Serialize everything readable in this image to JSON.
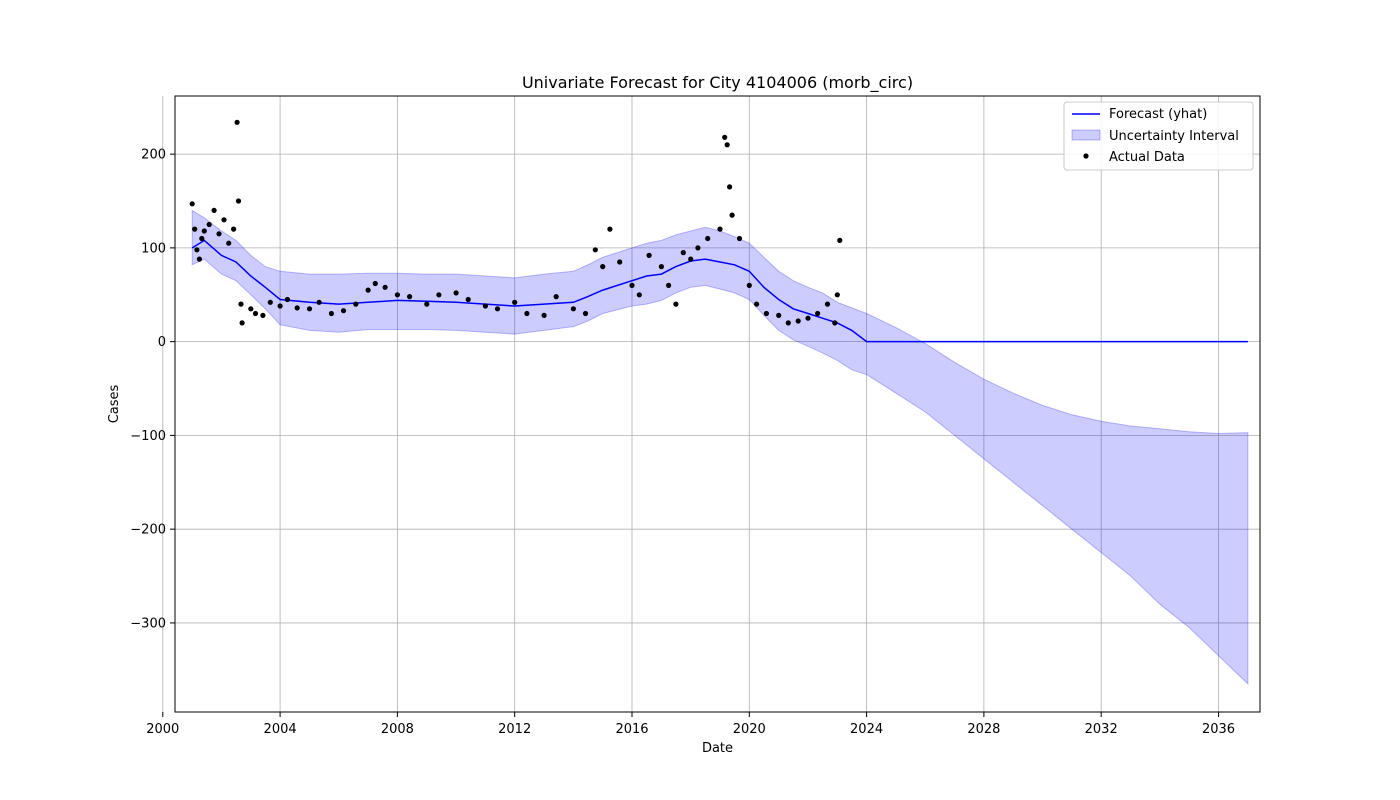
{
  "chart_data": {
    "type": "line",
    "title": "Univariate Forecast for City 4104006 (morb_circ)",
    "xlabel": "Date",
    "ylabel": "Cases",
    "xlim": [
      "2000-06-01",
      "2037-06-01"
    ],
    "ylim": [
      -395,
      262
    ],
    "x_ticks": [
      "2000",
      "2004",
      "2008",
      "2012",
      "2016",
      "2020",
      "2024",
      "2028",
      "2032",
      "2036"
    ],
    "y_ticks": [
      200,
      100,
      0,
      -100,
      -200,
      -300
    ],
    "y_tick_labels": [
      "200",
      "100",
      "0",
      "−100",
      "−200",
      "−300"
    ],
    "grid": true,
    "legend_position": "top-right",
    "colors": {
      "forecast": "#0000ff",
      "interval": "#0000ff",
      "actual": "#000000"
    },
    "series": [
      {
        "name": "Forecast (yhat)",
        "kind": "line",
        "x": [
          "2001-01-01",
          "2001-06-01",
          "2002-01-01",
          "2002-07-01",
          "2003-01-01",
          "2003-07-01",
          "2004-01-01",
          "2005-01-01",
          "2006-01-01",
          "2007-01-01",
          "2008-01-01",
          "2009-01-01",
          "2010-01-01",
          "2011-01-01",
          "2012-01-01",
          "2013-01-01",
          "2014-01-01",
          "2014-07-01",
          "2015-01-01",
          "2016-01-01",
          "2016-07-01",
          "2017-01-01",
          "2017-07-01",
          "2018-01-01",
          "2018-07-01",
          "2019-01-01",
          "2019-07-01",
          "2020-01-01",
          "2020-07-01",
          "2021-01-01",
          "2021-07-01",
          "2022-01-01",
          "2022-07-01",
          "2023-01-01",
          "2023-07-01",
          "2024-01-01",
          "2025-01-01",
          "2028-01-01",
          "2032-01-01",
          "2037-01-01"
        ],
        "y": [
          100,
          108,
          92,
          85,
          70,
          58,
          45,
          42,
          40,
          42,
          44,
          43,
          42,
          40,
          38,
          40,
          42,
          48,
          55,
          65,
          70,
          72,
          80,
          86,
          88,
          85,
          82,
          75,
          58,
          45,
          35,
          30,
          25,
          20,
          12,
          0,
          0,
          0,
          0,
          0
        ]
      },
      {
        "name": "Uncertainty Interval",
        "kind": "band",
        "x": [
          "2001-01-01",
          "2001-06-01",
          "2002-01-01",
          "2002-07-01",
          "2003-01-01",
          "2003-07-01",
          "2004-01-01",
          "2005-01-01",
          "2006-01-01",
          "2007-01-01",
          "2008-01-01",
          "2009-01-01",
          "2010-01-01",
          "2011-01-01",
          "2012-01-01",
          "2013-01-01",
          "2014-01-01",
          "2014-07-01",
          "2015-01-01",
          "2016-01-01",
          "2016-07-01",
          "2017-01-01",
          "2017-07-01",
          "2018-01-01",
          "2018-07-01",
          "2019-01-01",
          "2019-07-01",
          "2020-01-01",
          "2020-07-01",
          "2021-01-01",
          "2021-07-01",
          "2022-01-01",
          "2022-07-01",
          "2023-01-01",
          "2023-07-01",
          "2024-01-01",
          "2025-01-01",
          "2026-01-01",
          "2027-01-01",
          "2028-01-01",
          "2029-01-01",
          "2030-01-01",
          "2031-01-01",
          "2032-01-01",
          "2033-01-01",
          "2034-01-01",
          "2035-01-01",
          "2036-01-01",
          "2037-01-01"
        ],
        "lower": [
          82,
          88,
          72,
          65,
          50,
          35,
          18,
          12,
          10,
          13,
          13,
          13,
          12,
          10,
          8,
          12,
          16,
          22,
          30,
          38,
          40,
          44,
          52,
          58,
          60,
          56,
          52,
          45,
          28,
          12,
          2,
          -5,
          -12,
          -20,
          -30,
          -35,
          -55,
          -75,
          -100,
          -125,
          -150,
          -175,
          -200,
          -225,
          -250,
          -280,
          -305,
          -335,
          -365
        ],
        "upper": [
          140,
          132,
          118,
          108,
          92,
          80,
          75,
          72,
          72,
          73,
          73,
          72,
          72,
          70,
          68,
          72,
          75,
          82,
          90,
          100,
          105,
          108,
          114,
          118,
          122,
          118,
          112,
          105,
          90,
          75,
          65,
          58,
          52,
          42,
          36,
          30,
          15,
          -2,
          -22,
          -40,
          -55,
          -68,
          -78,
          -85,
          -90,
          -93,
          -96,
          -98,
          -97
        ]
      },
      {
        "name": "Actual Data",
        "kind": "scatter",
        "x": [
          "2001-01-01",
          "2001-02-01",
          "2001-03-01",
          "2001-04-01",
          "2001-05-01",
          "2001-06-01",
          "2001-08-01",
          "2001-10-01",
          "2001-12-01",
          "2002-02-01",
          "2002-04-01",
          "2002-06-01",
          "2002-07-15",
          "2002-08-01",
          "2002-09-01",
          "2002-09-15",
          "2003-01-01",
          "2003-03-01",
          "2003-06-01",
          "2003-09-01",
          "2004-01-01",
          "2004-04-01",
          "2004-08-01",
          "2005-01-01",
          "2005-05-01",
          "2005-10-01",
          "2006-03-01",
          "2006-08-01",
          "2007-01-01",
          "2007-04-01",
          "2007-08-01",
          "2008-01-01",
          "2008-06-01",
          "2009-01-01",
          "2009-06-01",
          "2010-01-01",
          "2010-06-01",
          "2011-01-01",
          "2011-06-01",
          "2012-01-01",
          "2012-06-01",
          "2013-01-01",
          "2013-06-01",
          "2014-01-01",
          "2014-06-01",
          "2014-10-01",
          "2015-01-01",
          "2015-04-01",
          "2015-08-01",
          "2016-01-01",
          "2016-04-01",
          "2016-08-01",
          "2017-01-01",
          "2017-04-01",
          "2017-07-01",
          "2017-10-01",
          "2018-01-01",
          "2018-04-01",
          "2018-08-01",
          "2019-01-01",
          "2019-03-01",
          "2019-04-01",
          "2019-05-01",
          "2019-06-01",
          "2019-09-01",
          "2020-01-01",
          "2020-04-01",
          "2020-08-01",
          "2021-01-01",
          "2021-05-01",
          "2021-09-01",
          "2022-01-01",
          "2022-05-01",
          "2022-09-01",
          "2022-12-01",
          "2023-01-01",
          "2023-02-01"
        ],
        "y": [
          147,
          120,
          98,
          88,
          110,
          118,
          125,
          140,
          115,
          130,
          105,
          120,
          234,
          150,
          40,
          20,
          35,
          30,
          28,
          42,
          38,
          45,
          36,
          35,
          42,
          30,
          33,
          40,
          55,
          62,
          58,
          50,
          48,
          40,
          50,
          52,
          45,
          38,
          35,
          42,
          30,
          28,
          48,
          35,
          30,
          98,
          80,
          120,
          85,
          60,
          50,
          92,
          80,
          60,
          40,
          95,
          88,
          100,
          110,
          120,
          218,
          210,
          165,
          135,
          110,
          60,
          40,
          30,
          28,
          20,
          22,
          25,
          30,
          40,
          20,
          50,
          108
        ]
      }
    ]
  }
}
